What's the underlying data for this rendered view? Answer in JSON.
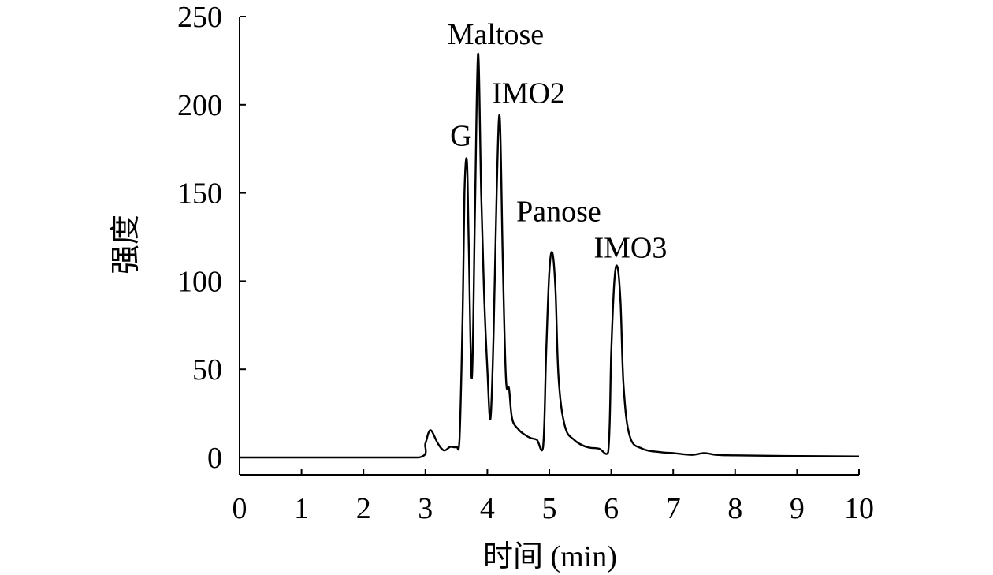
{
  "chart_data": {
    "type": "line",
    "title": "",
    "xlabel": "时间 (min)",
    "ylabel": "强度",
    "xlim": [
      0,
      10
    ],
    "ylim": [
      0,
      250
    ],
    "xticks": [
      "0",
      "1",
      "2",
      "3",
      "4",
      "5",
      "6",
      "7",
      "8",
      "9",
      "10"
    ],
    "yticks": [
      "0",
      "50",
      "100",
      "150",
      "200",
      "250"
    ],
    "grid": false,
    "legend": "none",
    "series": [
      {
        "x": [
          0,
          1,
          2,
          2.9,
          3.0,
          3.05,
          3.1,
          3.2,
          3.3,
          3.4,
          3.5,
          3.55,
          3.6,
          3.63,
          3.67,
          3.7,
          3.75,
          3.8,
          3.85,
          3.9,
          3.95,
          4.0,
          4.05,
          4.1,
          4.15,
          4.2,
          4.25,
          4.3,
          4.35,
          4.4,
          4.5,
          4.6,
          4.7,
          4.8,
          4.9,
          4.95,
          5.0,
          5.05,
          5.1,
          5.15,
          5.25,
          5.4,
          5.6,
          5.8,
          5.95,
          6.0,
          6.05,
          6.1,
          6.15,
          6.2,
          6.3,
          6.5,
          6.8,
          7.0,
          7.3,
          7.5,
          7.7,
          8,
          9,
          10
        ],
        "y": [
          0,
          0,
          0,
          0,
          8,
          14,
          15,
          8,
          4,
          6,
          6,
          10,
          80,
          150,
          168,
          120,
          45,
          140,
          229,
          150,
          90,
          50,
          22,
          70,
          150,
          193,
          110,
          45,
          39,
          22,
          16,
          13,
          11,
          10,
          6,
          60,
          105,
          116,
          95,
          45,
          18,
          10,
          6,
          5,
          3,
          60,
          100,
          108,
          88,
          40,
          12,
          5,
          3,
          2.5,
          1.5,
          2.5,
          1.5,
          1.2,
          0.8,
          0.6
        ]
      }
    ],
    "annotations": [
      {
        "text": "G",
        "x": 3.7,
        "y": 168
      },
      {
        "text": "Maltose",
        "x": 3.88,
        "y": 229
      },
      {
        "text": "IMO2",
        "x": 4.2,
        "y": 193
      },
      {
        "text": "Panose",
        "x": 5.05,
        "y": 116
      },
      {
        "text": "IMO3",
        "x": 6.08,
        "y": 108
      }
    ]
  }
}
